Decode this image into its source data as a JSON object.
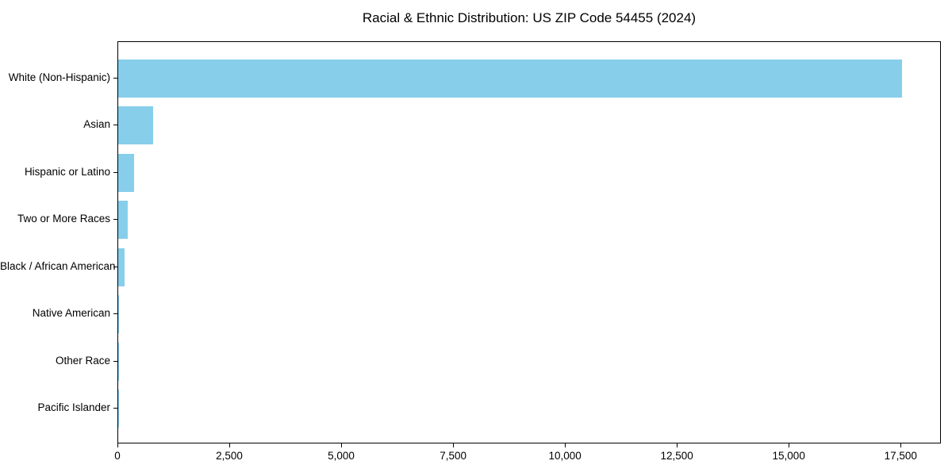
{
  "chart_data": {
    "type": "bar",
    "orientation": "horizontal",
    "title": "Racial & Ethnic Distribution: US ZIP Code 54455 (2024)",
    "categories": [
      "White (Non-Hispanic)",
      "Asian",
      "Hispanic or Latino",
      "Two or More Races",
      "Black / African American",
      "Native American",
      "Other Race",
      "Pacific Islander"
    ],
    "values": [
      17520,
      785,
      350,
      220,
      150,
      15,
      25,
      5
    ],
    "xlabel": "",
    "ylabel": "",
    "xlim": [
      0,
      18400
    ],
    "x_ticks": [
      0,
      2500,
      5000,
      7500,
      10000,
      12500,
      15000,
      17500
    ],
    "x_tick_labels": [
      "0",
      "2,500",
      "5,000",
      "7,500",
      "10,000",
      "12,500",
      "15,000",
      "17,500"
    ],
    "grid": false,
    "legend": "none",
    "bar_color": "#87CEEB",
    "spine_color": "#000000",
    "background_color": "#FFFFFF"
  }
}
